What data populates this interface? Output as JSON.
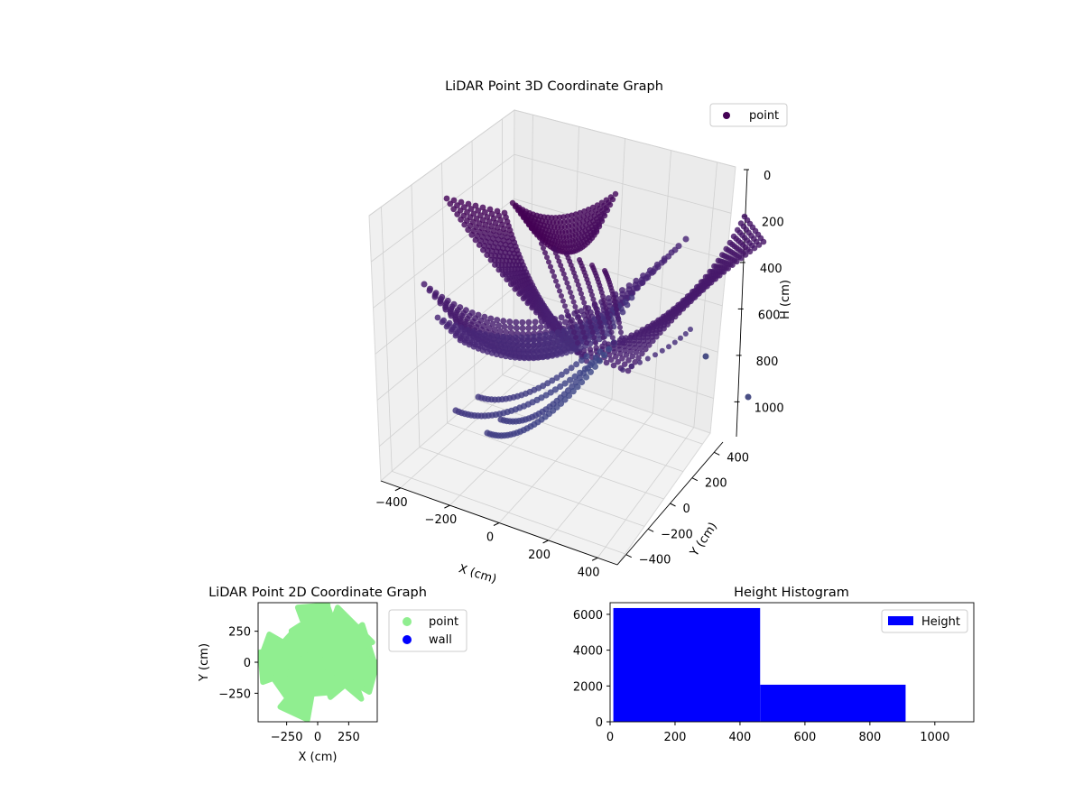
{
  "chart_data": [
    {
      "type": "scatter",
      "projection": "3d",
      "title": "LiDAR Point 3D Coordinate Graph",
      "xlabel": "X (cm)",
      "ylabel": "Y (cm)",
      "zlabel": "H (cm)",
      "xticks": [
        -400,
        -200,
        0,
        200,
        400
      ],
      "yticks": [
        -400,
        -200,
        0,
        200,
        400
      ],
      "zticks": [
        0,
        200,
        400,
        600,
        800,
        1000
      ],
      "xtick_labels": [
        "−400",
        "−200",
        "0",
        "200",
        "400"
      ],
      "ytick_labels": [
        "−400",
        "−200",
        "0",
        "200",
        "400"
      ],
      "ztick_labels": [
        "0",
        "200",
        "400",
        "600",
        "800",
        "1000"
      ],
      "xlim": [
        -480,
        480
      ],
      "ylim": [
        -480,
        480
      ],
      "zlim": [
        0,
        1150
      ],
      "z_inverted": true,
      "grid": true,
      "legend_position": "top-right",
      "series": [
        {
          "name": "point",
          "color": "#440154",
          "colormap": "viridis"
        }
      ]
    },
    {
      "type": "scatter",
      "title": "LiDAR Point 2D Coordinate Graph",
      "xlabel": "X (cm)",
      "ylabel": "Y (cm)",
      "xlim": [
        -480,
        480
      ],
      "ylim": [
        -480,
        480
      ],
      "xticks": [
        -250,
        0,
        250
      ],
      "yticks": [
        -250,
        0,
        250
      ],
      "xtick_labels": [
        "−250",
        "0",
        "250"
      ],
      "ytick_labels": [
        "−250",
        "0",
        "250"
      ],
      "legend_position": "outside-right",
      "series": [
        {
          "name": "point",
          "color": "#90ee90"
        },
        {
          "name": "wall",
          "color": "#0000ff",
          "values": []
        }
      ]
    },
    {
      "type": "bar",
      "title": "Height Histogram",
      "bins": [
        {
          "start": 10,
          "end": 462,
          "count": 6350
        },
        {
          "start": 462,
          "end": 910,
          "count": 2070
        },
        {
          "start": 910,
          "end": 1020,
          "count": 0
        }
      ],
      "xlim": [
        0,
        1120
      ],
      "ylim": [
        0,
        6650
      ],
      "xticks": [
        0,
        200,
        400,
        600,
        800,
        1000
      ],
      "yticks": [
        0,
        2000,
        4000,
        6000
      ],
      "xtick_labels": [
        "0",
        "200",
        "400",
        "600",
        "800",
        "1000"
      ],
      "ytick_labels": [
        "0",
        "2000",
        "4000",
        "6000"
      ],
      "legend_position": "top-right",
      "series": [
        {
          "name": "Height",
          "color": "#0000ff"
        }
      ]
    }
  ]
}
